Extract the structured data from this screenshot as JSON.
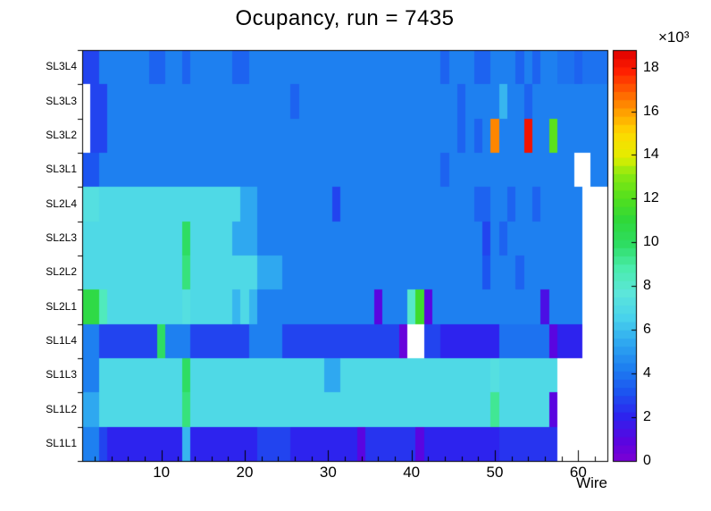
{
  "chart_data": {
    "type": "heatmap",
    "title": "Ocupancy, run = 7435",
    "xlabel": "Wire",
    "x_range": [
      0.5,
      63.5
    ],
    "x_ticks": [
      10,
      20,
      30,
      40,
      50,
      60
    ],
    "x_minor_tick_step": 2,
    "rows_top_to_bottom": [
      "SL3L4",
      "SL3L3",
      "SL3L2",
      "SL3L1",
      "SL2L4",
      "SL2L3",
      "SL2L2",
      "SL2L1",
      "SL1L4",
      "SL1L3",
      "SL1L2",
      "SL1L1"
    ],
    "zmin": 0,
    "zmax": 18.8,
    "grid": false,
    "colorbar": {
      "ticks": [
        0,
        2,
        4,
        6,
        8,
        10,
        12,
        14,
        16,
        18
      ],
      "exponent": "×10³"
    },
    "palette_stops": [
      [
        0.0,
        "#7d00d4"
      ],
      [
        0.05,
        "#5a05e0"
      ],
      [
        0.11,
        "#2d23ee"
      ],
      [
        0.17,
        "#1c55f0"
      ],
      [
        0.23,
        "#1e80f0"
      ],
      [
        0.29,
        "#2fa8f0"
      ],
      [
        0.35,
        "#48d2ec"
      ],
      [
        0.41,
        "#5ce6da"
      ],
      [
        0.47,
        "#4aecad"
      ],
      [
        0.53,
        "#2edd62"
      ],
      [
        0.59,
        "#30d838"
      ],
      [
        0.64,
        "#52e01e"
      ],
      [
        0.7,
        "#8ae811"
      ],
      [
        0.74,
        "#e2ee00"
      ],
      [
        0.8,
        "#ffd800"
      ],
      [
        0.85,
        "#ffa000"
      ],
      [
        0.9,
        "#ff6000"
      ],
      [
        0.95,
        "#ff2000"
      ],
      [
        1.0,
        "#e00000"
      ]
    ],
    "matrix": [
      [
        3,
        3,
        4.4,
        4.4,
        4.4,
        4.4,
        4.4,
        4.4,
        3.6,
        3.6,
        4.4,
        4.4,
        3.6,
        4.4,
        4.4,
        4.4,
        4.4,
        4.4,
        3.6,
        3.6,
        4.4,
        4.4,
        4.4,
        4.4,
        4.4,
        4.4,
        4.4,
        4.4,
        4.4,
        4.4,
        4.4,
        4.4,
        4.4,
        4.4,
        4.4,
        4.4,
        4.4,
        4.4,
        4.4,
        4.4,
        4.4,
        4.4,
        4.4,
        3.6,
        4.4,
        4.4,
        4.4,
        3.6,
        3.6,
        4.4,
        4.4,
        4.4,
        3.6,
        4.4,
        3.6,
        4.4,
        4.4,
        4,
        4,
        3.4,
        4,
        4,
        4
      ],
      [
        null,
        3,
        3,
        4.4,
        4.4,
        4.4,
        4.4,
        4.4,
        4.4,
        4.4,
        4.4,
        4.4,
        4.4,
        4.4,
        4.4,
        4.4,
        4.4,
        4.4,
        4.4,
        4.4,
        4.4,
        4.4,
        4.4,
        4.4,
        4.4,
        3.6,
        4.4,
        4.4,
        4.4,
        4.4,
        4.4,
        4.4,
        4.4,
        4.4,
        4.4,
        4.4,
        4.4,
        4.4,
        4.4,
        4.4,
        4.4,
        4.4,
        4.4,
        4.4,
        4.4,
        3.4,
        4.4,
        4.4,
        4.4,
        4.4,
        5.8,
        4.4,
        4.4,
        3.4,
        4.4,
        4.4,
        4.4,
        4.2,
        4.2,
        4.2,
        4.2,
        4.2,
        4.2
      ],
      [
        null,
        3,
        3,
        4.4,
        4.4,
        4.4,
        4.4,
        4.4,
        4.4,
        4.4,
        4.4,
        4.4,
        4.4,
        4.4,
        4.4,
        4.4,
        4.4,
        4.4,
        4.4,
        4.4,
        4.4,
        4.4,
        4.4,
        4.4,
        4.4,
        4.4,
        4.4,
        4.4,
        4.4,
        4.4,
        4.4,
        4.4,
        4.4,
        4.4,
        4.4,
        4.4,
        4.4,
        4.4,
        4.4,
        4.4,
        4.4,
        4.4,
        4.4,
        4.4,
        4.4,
        3.6,
        4.4,
        3.6,
        4.4,
        16.2,
        4.4,
        4.4,
        4.4,
        18.4,
        4.4,
        4.4,
        12.3,
        4.2,
        4.2,
        4.2,
        4.2,
        4.2,
        4.2
      ],
      [
        3.2,
        3.2,
        4.4,
        4.4,
        4.4,
        4.4,
        4.4,
        4.4,
        4.4,
        4.4,
        4.4,
        4.4,
        4.4,
        4.4,
        4.4,
        4.4,
        4.4,
        4.4,
        4.4,
        4.4,
        4.4,
        4.4,
        4.4,
        4.4,
        4.4,
        4.4,
        4.4,
        4.4,
        4.4,
        4.4,
        4.4,
        4.4,
        4.4,
        4.4,
        4.4,
        4.4,
        4.4,
        4.4,
        4.4,
        4.4,
        4.4,
        4.4,
        4.4,
        3.6,
        4.4,
        4.4,
        4.4,
        4.4,
        4.4,
        4.4,
        4.4,
        4.4,
        4.4,
        4.4,
        4.4,
        4.4,
        4.4,
        4.2,
        4.2,
        null,
        null,
        4.2,
        4.2
      ],
      [
        7.2,
        7.2,
        6.8,
        6.8,
        6.8,
        6.8,
        6.8,
        6.8,
        6.8,
        6.8,
        6.8,
        6.8,
        6.8,
        6.8,
        6.8,
        6.8,
        6.8,
        6.8,
        6.8,
        5.6,
        5.6,
        4.4,
        4.4,
        4.4,
        4.4,
        4.4,
        4.4,
        4.4,
        4.4,
        4.4,
        2.8,
        4.4,
        4.4,
        4.4,
        4.4,
        4.4,
        4.4,
        4.4,
        4.4,
        4.4,
        4.4,
        4.4,
        4.4,
        4.4,
        4.4,
        4.4,
        4.4,
        3.4,
        3.4,
        4.4,
        4.4,
        3.4,
        4.4,
        4.4,
        3.4,
        4.4,
        4.4,
        4.4,
        4.2,
        4.2,
        null,
        null,
        null
      ],
      [
        7,
        7,
        6.8,
        6.8,
        6.8,
        6.8,
        6.8,
        6.8,
        6.8,
        6.8,
        6.8,
        6.8,
        9.8,
        6.8,
        6.8,
        6.8,
        6.8,
        6.8,
        5.6,
        5.6,
        5.6,
        4.4,
        4.4,
        4.4,
        4.4,
        4.4,
        4.4,
        4.4,
        4.4,
        4.4,
        4.4,
        4.4,
        4.4,
        4.4,
        4.4,
        4.4,
        4.4,
        4.4,
        4.4,
        4.4,
        4.4,
        4.4,
        4.4,
        4.4,
        4.4,
        4.4,
        4.4,
        4.4,
        3,
        4.4,
        3.4,
        4.4,
        4.4,
        4.4,
        4.4,
        4.4,
        4.4,
        4.4,
        4.4,
        4.4,
        null,
        null,
        null
      ],
      [
        7,
        7,
        6.8,
        6.8,
        6.8,
        6.8,
        6.8,
        6.8,
        6.8,
        6.8,
        6.8,
        6.8,
        9.5,
        6.8,
        6.8,
        6.8,
        6.8,
        6.8,
        6.8,
        6.8,
        6.8,
        5.6,
        5.6,
        5.6,
        4.4,
        4.4,
        4.4,
        4.4,
        4.4,
        4.4,
        4.4,
        4.4,
        4.4,
        4.4,
        4.4,
        4.4,
        4.4,
        4.4,
        4.4,
        4.4,
        4.4,
        4.4,
        4.4,
        4.4,
        4.4,
        4.4,
        4.4,
        4.4,
        3.2,
        4.4,
        4.4,
        4.4,
        3.4,
        4.4,
        4.4,
        4.4,
        4.4,
        4.4,
        4.4,
        4.4,
        null,
        null,
        null
      ],
      [
        10.8,
        10.8,
        8.5,
        6.8,
        6.8,
        6.8,
        6.8,
        6.8,
        6.8,
        6.8,
        6.8,
        6.8,
        7.4,
        6.8,
        6.8,
        6.8,
        6.8,
        6.8,
        6,
        6.8,
        6,
        4.4,
        4.4,
        4.4,
        4.4,
        4.4,
        4.4,
        4.4,
        4.4,
        4.4,
        4.4,
        4.4,
        4.4,
        4.4,
        4.4,
        0.8,
        4.4,
        4.4,
        4.4,
        8.2,
        11.5,
        1,
        4.4,
        4.4,
        4.4,
        4.4,
        4.4,
        4.4,
        4.4,
        4.4,
        4.4,
        4.4,
        4.4,
        4.4,
        4.4,
        1.5,
        4.4,
        4.4,
        4.4,
        4.4,
        null,
        null,
        null
      ],
      [
        4.2,
        4.2,
        3,
        3,
        3,
        3,
        3,
        3,
        3,
        10,
        4.2,
        4.2,
        4.2,
        3,
        3,
        3,
        3,
        3,
        3,
        3,
        4.2,
        4.2,
        4.2,
        4.2,
        3,
        3,
        3,
        3,
        3,
        3,
        3,
        3,
        3,
        3,
        3,
        3,
        3,
        3,
        0.6,
        null,
        null,
        3,
        3,
        2.2,
        2.2,
        2.2,
        2.2,
        2.2,
        2.2,
        2.2,
        4,
        4,
        4,
        4,
        4,
        4,
        0.8,
        2.2,
        2.2,
        2.2,
        null,
        null,
        null
      ],
      [
        4.4,
        4.4,
        6.8,
        6.8,
        6.8,
        6.8,
        6.8,
        6.8,
        6.8,
        6.8,
        6.8,
        6.8,
        10,
        6.8,
        6.8,
        6.8,
        6.8,
        6.8,
        6.8,
        6.8,
        6.8,
        6.8,
        6.8,
        6.8,
        6.8,
        6.8,
        6.8,
        6.8,
        6.8,
        5.6,
        5.6,
        6.8,
        6.8,
        6.8,
        6.8,
        6.8,
        6.8,
        6.8,
        6.8,
        6.8,
        6.8,
        6.8,
        6.8,
        6.8,
        6.8,
        6.8,
        6.8,
        6.8,
        6.8,
        7.4,
        6.8,
        6.8,
        6.8,
        6.8,
        6.8,
        6.8,
        6.8,
        null,
        null,
        null,
        null,
        null,
        null
      ],
      [
        5.6,
        5.6,
        6.8,
        6.8,
        6.8,
        6.8,
        6.8,
        6.8,
        6.8,
        6.8,
        6.8,
        6.8,
        9.5,
        6.8,
        6.8,
        6.8,
        6.8,
        6.8,
        6.8,
        6.8,
        6.8,
        6.8,
        6.8,
        6.8,
        6.8,
        6.8,
        6.8,
        6.8,
        6.8,
        6.8,
        6.8,
        6.8,
        6.8,
        6.8,
        6.8,
        6.8,
        6.8,
        6.8,
        6.8,
        6.8,
        6.8,
        6.8,
        6.8,
        6.8,
        6.8,
        6.8,
        6.8,
        6.8,
        6.8,
        9.2,
        6.8,
        6.8,
        6.8,
        6.8,
        6.8,
        6.8,
        1,
        null,
        null,
        null,
        null,
        null,
        null
      ],
      [
        4.4,
        4.4,
        3,
        2.2,
        2.2,
        2.2,
        2.2,
        2.2,
        2.2,
        2.2,
        2.2,
        2.2,
        6,
        2.2,
        2.2,
        2.2,
        2.2,
        2.2,
        2.2,
        2.2,
        2.2,
        2.8,
        2.8,
        2.8,
        2.8,
        2.2,
        2.2,
        2.2,
        2.2,
        2.2,
        2.2,
        2.2,
        2.2,
        0.8,
        2.4,
        2.4,
        2.4,
        2.4,
        2.4,
        2.4,
        0.8,
        2.2,
        2.2,
        2.2,
        2.2,
        2.2,
        2.2,
        2.2,
        2.2,
        2.2,
        2.6,
        2.6,
        2.6,
        2.6,
        2.6,
        2.6,
        2.6,
        null,
        null,
        null,
        null,
        null,
        null
      ]
    ]
  }
}
